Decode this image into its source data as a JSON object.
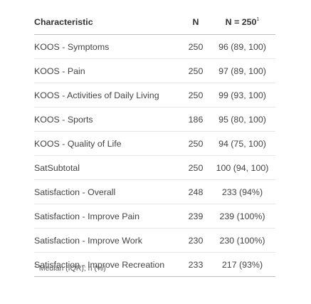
{
  "table": {
    "headers": {
      "characteristic": "Characteristic",
      "n": "N",
      "summary": "N = 250",
      "summary_marker": "1"
    },
    "rows": [
      {
        "characteristic": "KOOS - Symptoms",
        "n": "250",
        "value": "96 (89, 100)"
      },
      {
        "characteristic": "KOOS - Pain",
        "n": "250",
        "value": "97 (89, 100)"
      },
      {
        "characteristic": "KOOS - Activities of Daily Living",
        "n": "250",
        "value": "99 (93, 100)"
      },
      {
        "characteristic": "KOOS - Sports",
        "n": "186",
        "value": "95 (80, 100)"
      },
      {
        "characteristic": "KOOS - Quality of Life",
        "n": "250",
        "value": "94 (75, 100)"
      },
      {
        "characteristic": "SatSubtotal",
        "n": "250",
        "value": "100 (94, 100)"
      },
      {
        "characteristic": "Satisfaction - Overall",
        "n": "248",
        "value": "233 (94%)"
      },
      {
        "characteristic": "Satisfaction - Improve Pain",
        "n": "239",
        "value": "239 (100%)"
      },
      {
        "characteristic": "Satisfaction - Improve Work",
        "n": "230",
        "value": "230 (100%)"
      },
      {
        "characteristic": "Satisfaction - Improve Recreation",
        "n": "233",
        "value": "217 (93%)"
      }
    ]
  },
  "footnote": {
    "marker": "1",
    "text": "Median (IQR); n (%)"
  }
}
